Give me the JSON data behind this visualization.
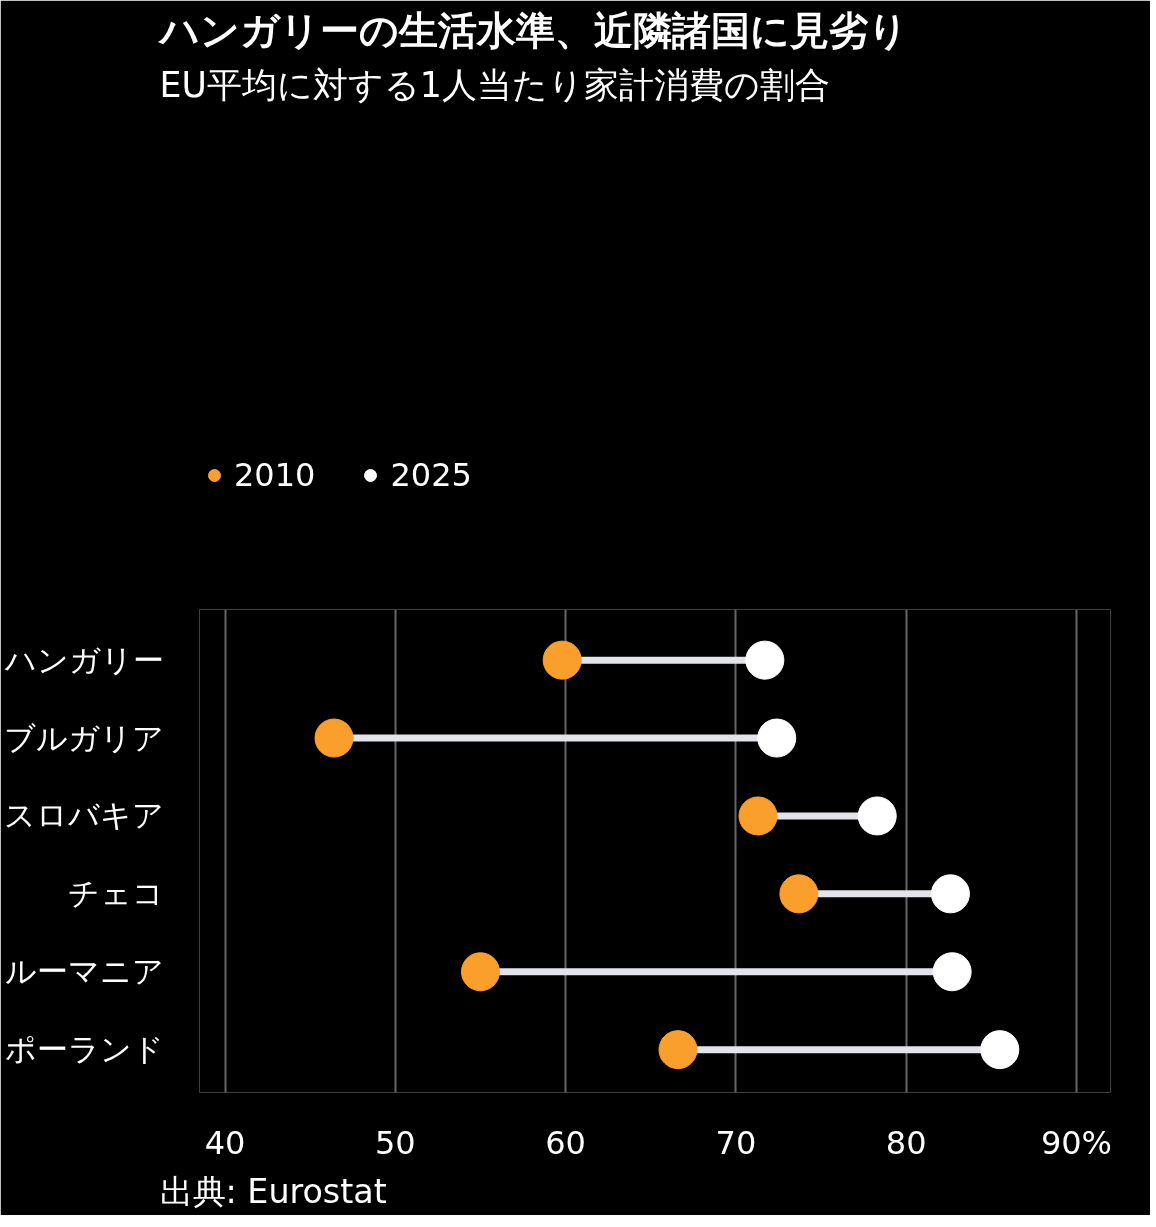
{
  "chart_data": {
    "type": "scatter",
    "orientation": "horizontal",
    "title": "ハンガリーの生活水準、近隣諸国に見劣り",
    "subtitle": "EU平均に対する1人当たり家計消費の割合",
    "categories": [
      "ハンガリー",
      "ブルガリア",
      "スロバキア",
      "チェコ",
      "ルーマニア",
      "ポーランド"
    ],
    "series": [
      {
        "name": "2010",
        "color": "#fb9f2c",
        "values": [
          59.8,
          46.4,
          71.3,
          73.7,
          55.0,
          66.6
        ]
      },
      {
        "name": "2025",
        "color": "#ffffff",
        "values": [
          71.7,
          72.4,
          78.3,
          82.6,
          82.7,
          85.5
        ]
      }
    ],
    "xlim": [
      38.5,
      92
    ],
    "xticks": [
      40,
      50,
      60,
      70,
      80,
      {
        "value": 90,
        "label": "90%"
      }
    ],
    "grid": "x",
    "legend": "top left",
    "marker": "circle",
    "annotations": [
      "出典: Eurostat"
    ]
  }
}
